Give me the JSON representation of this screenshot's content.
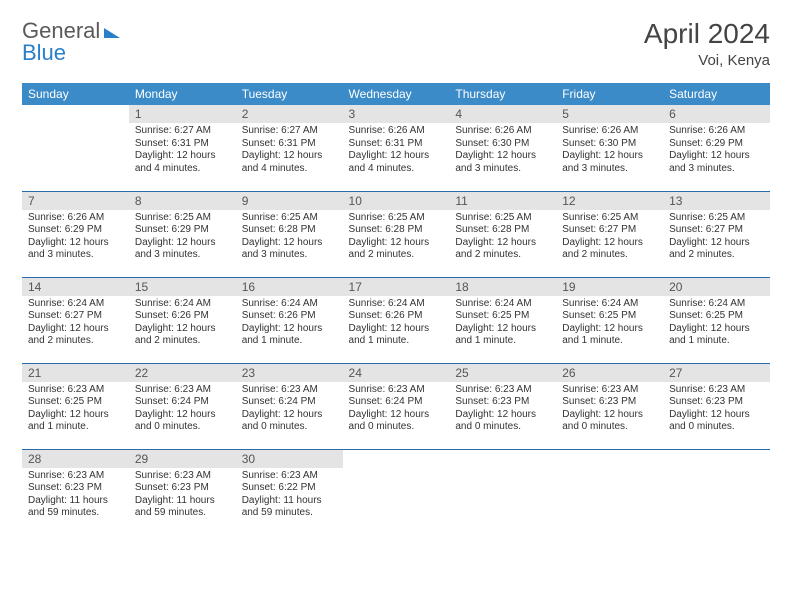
{
  "logo": {
    "part1": "General",
    "part2": "Blue"
  },
  "title": "April 2024",
  "subtitle": "Voi, Kenya",
  "colors": {
    "header_bg": "#3b8bc8",
    "header_text": "#ffffff",
    "daynum_bg": "#e4e4e4",
    "daynum_text": "#555555",
    "body_text": "#333333",
    "rule": "#2a6aa8",
    "logo_gray": "#5a5a5a",
    "logo_blue": "#2a7fc9"
  },
  "weekdays": [
    "Sunday",
    "Monday",
    "Tuesday",
    "Wednesday",
    "Thursday",
    "Friday",
    "Saturday"
  ],
  "weeks": [
    [
      null,
      {
        "n": "1",
        "sr": "6:27 AM",
        "ss": "6:31 PM",
        "dl": "12 hours and 4 minutes."
      },
      {
        "n": "2",
        "sr": "6:27 AM",
        "ss": "6:31 PM",
        "dl": "12 hours and 4 minutes."
      },
      {
        "n": "3",
        "sr": "6:26 AM",
        "ss": "6:31 PM",
        "dl": "12 hours and 4 minutes."
      },
      {
        "n": "4",
        "sr": "6:26 AM",
        "ss": "6:30 PM",
        "dl": "12 hours and 3 minutes."
      },
      {
        "n": "5",
        "sr": "6:26 AM",
        "ss": "6:30 PM",
        "dl": "12 hours and 3 minutes."
      },
      {
        "n": "6",
        "sr": "6:26 AM",
        "ss": "6:29 PM",
        "dl": "12 hours and 3 minutes."
      }
    ],
    [
      {
        "n": "7",
        "sr": "6:26 AM",
        "ss": "6:29 PM",
        "dl": "12 hours and 3 minutes."
      },
      {
        "n": "8",
        "sr": "6:25 AM",
        "ss": "6:29 PM",
        "dl": "12 hours and 3 minutes."
      },
      {
        "n": "9",
        "sr": "6:25 AM",
        "ss": "6:28 PM",
        "dl": "12 hours and 3 minutes."
      },
      {
        "n": "10",
        "sr": "6:25 AM",
        "ss": "6:28 PM",
        "dl": "12 hours and 2 minutes."
      },
      {
        "n": "11",
        "sr": "6:25 AM",
        "ss": "6:28 PM",
        "dl": "12 hours and 2 minutes."
      },
      {
        "n": "12",
        "sr": "6:25 AM",
        "ss": "6:27 PM",
        "dl": "12 hours and 2 minutes."
      },
      {
        "n": "13",
        "sr": "6:25 AM",
        "ss": "6:27 PM",
        "dl": "12 hours and 2 minutes."
      }
    ],
    [
      {
        "n": "14",
        "sr": "6:24 AM",
        "ss": "6:27 PM",
        "dl": "12 hours and 2 minutes."
      },
      {
        "n": "15",
        "sr": "6:24 AM",
        "ss": "6:26 PM",
        "dl": "12 hours and 2 minutes."
      },
      {
        "n": "16",
        "sr": "6:24 AM",
        "ss": "6:26 PM",
        "dl": "12 hours and 1 minute."
      },
      {
        "n": "17",
        "sr": "6:24 AM",
        "ss": "6:26 PM",
        "dl": "12 hours and 1 minute."
      },
      {
        "n": "18",
        "sr": "6:24 AM",
        "ss": "6:25 PM",
        "dl": "12 hours and 1 minute."
      },
      {
        "n": "19",
        "sr": "6:24 AM",
        "ss": "6:25 PM",
        "dl": "12 hours and 1 minute."
      },
      {
        "n": "20",
        "sr": "6:24 AM",
        "ss": "6:25 PM",
        "dl": "12 hours and 1 minute."
      }
    ],
    [
      {
        "n": "21",
        "sr": "6:23 AM",
        "ss": "6:25 PM",
        "dl": "12 hours and 1 minute."
      },
      {
        "n": "22",
        "sr": "6:23 AM",
        "ss": "6:24 PM",
        "dl": "12 hours and 0 minutes."
      },
      {
        "n": "23",
        "sr": "6:23 AM",
        "ss": "6:24 PM",
        "dl": "12 hours and 0 minutes."
      },
      {
        "n": "24",
        "sr": "6:23 AM",
        "ss": "6:24 PM",
        "dl": "12 hours and 0 minutes."
      },
      {
        "n": "25",
        "sr": "6:23 AM",
        "ss": "6:23 PM",
        "dl": "12 hours and 0 minutes."
      },
      {
        "n": "26",
        "sr": "6:23 AM",
        "ss": "6:23 PM",
        "dl": "12 hours and 0 minutes."
      },
      {
        "n": "27",
        "sr": "6:23 AM",
        "ss": "6:23 PM",
        "dl": "12 hours and 0 minutes."
      }
    ],
    [
      {
        "n": "28",
        "sr": "6:23 AM",
        "ss": "6:23 PM",
        "dl": "11 hours and 59 minutes."
      },
      {
        "n": "29",
        "sr": "6:23 AM",
        "ss": "6:23 PM",
        "dl": "11 hours and 59 minutes."
      },
      {
        "n": "30",
        "sr": "6:23 AM",
        "ss": "6:22 PM",
        "dl": "11 hours and 59 minutes."
      },
      null,
      null,
      null,
      null
    ]
  ],
  "labels": {
    "sunrise": "Sunrise:",
    "sunset": "Sunset:",
    "daylight": "Daylight:"
  }
}
